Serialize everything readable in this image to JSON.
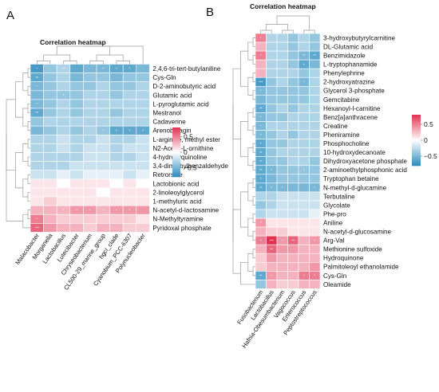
{
  "panels": [
    {
      "letter": "A",
      "chart_data": {
        "type": "heatmap",
        "title": "Correlation heatmap",
        "columns": [
          "Malacobacter",
          "Morganella",
          "Lactobacillus",
          "Lutecibacter",
          "Chryseobacterium",
          "CL500-29_marine_group",
          "hgcI_clade",
          "Cyanobium_PCC-6307",
          "Polynucleobacter"
        ],
        "rows": [
          "2,4,6-tri-tert-butylaniline",
          "Cys-Gln",
          "D-2-aminobutyric acid",
          "Glutamic acid",
          "L-pyroglutamic acid",
          "Mestranol",
          "Cadaverine",
          "Arenobufagin",
          "L-arginine, methyl ester",
          "N2-Acetyl-L-ornithine",
          "4-hydroxyquinoline",
          "3,4-dimethylbenzaldehyde",
          "Retrorsine",
          "Lactobionic acid",
          "2-linoleoylglycerol",
          "1-methyluric acid",
          "N-acetyl-d-lactosamine",
          "N-Methyltyramine",
          "Pyridoxal phosphate"
        ],
        "values": [
          [
            -0.7,
            -0.4,
            -0.3,
            -0.6,
            -0.5,
            -0.5,
            -0.6,
            -0.6,
            -0.5
          ],
          [
            -0.6,
            -0.4,
            -0.3,
            -0.5,
            -0.4,
            -0.4,
            -0.5,
            -0.4,
            -0.4
          ],
          [
            -0.5,
            -0.4,
            -0.3,
            -0.4,
            -0.4,
            -0.3,
            -0.4,
            -0.4,
            -0.3
          ],
          [
            -0.5,
            -0.4,
            -0.4,
            -0.4,
            -0.3,
            -0.3,
            -0.4,
            -0.3,
            -0.3
          ],
          [
            -0.5,
            -0.4,
            -0.3,
            -0.4,
            -0.3,
            -0.3,
            -0.3,
            -0.3,
            -0.3
          ],
          [
            -0.6,
            -0.4,
            -0.3,
            -0.4,
            -0.3,
            -0.3,
            -0.4,
            -0.3,
            -0.3
          ],
          [
            -0.4,
            -0.3,
            -0.3,
            -0.3,
            -0.3,
            -0.3,
            -0.3,
            -0.3,
            -0.3
          ],
          [
            -0.5,
            -0.4,
            -0.3,
            -0.4,
            -0.3,
            -0.4,
            -0.6,
            -0.6,
            -0.6
          ],
          [
            -0.3,
            -0.3,
            -0.2,
            -0.3,
            -0.3,
            -0.2,
            -0.3,
            -0.3,
            -0.2
          ],
          [
            -0.3,
            -0.3,
            -0.2,
            -0.3,
            -0.2,
            -0.2,
            -0.3,
            -0.2,
            -0.2
          ],
          [
            -0.3,
            -0.3,
            -0.3,
            -0.3,
            -0.2,
            -0.2,
            -0.3,
            -0.3,
            -0.2
          ],
          [
            -0.3,
            -0.3,
            -0.3,
            -0.2,
            -0.2,
            -0.2,
            -0.2,
            -0.2,
            -0.2
          ],
          [
            -0.2,
            -0.2,
            -0.1,
            -0.2,
            -0.1,
            -0.1,
            -0.1,
            -0.2,
            -0.1
          ],
          [
            0.1,
            0.1,
            0.0,
            0.1,
            0.1,
            0.1,
            0.0,
            0.1,
            0.0
          ],
          [
            0.1,
            0.1,
            0.1,
            0.1,
            0.1,
            0.0,
            0.1,
            0.1,
            0.1
          ],
          [
            0.1,
            0.2,
            0.1,
            0.1,
            0.1,
            0.1,
            0.1,
            0.1,
            0.1
          ],
          [
            0.3,
            0.3,
            0.3,
            0.4,
            0.4,
            0.3,
            0.4,
            0.4,
            0.4
          ],
          [
            0.5,
            0.3,
            0.2,
            0.2,
            0.2,
            0.2,
            0.2,
            0.2,
            0.1
          ],
          [
            0.6,
            0.4,
            0.3,
            0.3,
            0.2,
            0.3,
            0.3,
            0.2,
            0.2
          ]
        ],
        "significance": [
          [
            "*",
            "",
            "**",
            "",
            "",
            "*",
            "*",
            "*",
            ""
          ],
          [
            "**",
            "",
            "",
            "",
            "",
            "",
            "",
            "",
            ""
          ],
          [
            "*",
            "",
            "",
            "",
            "",
            "",
            "",
            "",
            ""
          ],
          [
            "",
            "",
            "*",
            "",
            "",
            "",
            "",
            "",
            ""
          ],
          [
            "*",
            "",
            "",
            "",
            "",
            "",
            "",
            "",
            ""
          ],
          [
            "**",
            "",
            "",
            "",
            "",
            "",
            "",
            "",
            ""
          ],
          [
            "",
            "",
            "",
            "",
            "",
            "",
            "",
            "",
            ""
          ],
          [
            "",
            "",
            "",
            "",
            "",
            "*",
            "*",
            "*",
            "*"
          ],
          [
            "",
            "",
            "",
            "",
            "",
            "",
            "",
            "",
            ""
          ],
          [
            "",
            "",
            "",
            "",
            "",
            "",
            "",
            "",
            ""
          ],
          [
            "",
            "",
            "",
            "",
            "",
            "",
            "",
            "",
            ""
          ],
          [
            "",
            "",
            "",
            "",
            "",
            "",
            "",
            "",
            ""
          ],
          [
            "",
            "",
            "",
            "",
            "",
            "",
            "",
            "",
            ""
          ],
          [
            "",
            "",
            "",
            "",
            "",
            "",
            "",
            "",
            ""
          ],
          [
            "",
            "",
            "",
            "",
            "",
            "",
            "",
            "",
            ""
          ],
          [
            "",
            "",
            "",
            "",
            "",
            "",
            "",
            "",
            ""
          ],
          [
            "",
            "",
            "*",
            "*",
            "*",
            "*",
            "*",
            "*",
            ""
          ],
          [
            "*",
            "",
            "",
            "",
            "",
            "",
            "",
            "",
            ""
          ],
          [
            "***",
            "",
            "",
            "",
            "",
            "",
            "",
            "",
            ""
          ]
        ],
        "legend": {
          "ticks": [
            0.5,
            0,
            -0.5
          ],
          "tick_labels": [
            "0.5",
            "0",
            "−0.5"
          ],
          "range": [
            -0.8,
            0.8
          ]
        },
        "colors": {
          "low": "#2b8cbe",
          "mid": "#ffffff",
          "high": "#e0314f"
        }
      }
    },
    {
      "letter": "B",
      "chart_data": {
        "type": "heatmap",
        "title": "Correlation heatmap",
        "columns": [
          "Fusobacterium",
          "Lactobacillus",
          "Hafnia-Obesumbacterium",
          "Vagococcus",
          "Enterococcus",
          "Peptostreptococcus"
        ],
        "rows": [
          "3-hydroxybutyrylcarnitine",
          "DL-Glutamic acid",
          "Benzimidazole",
          "L-tryptophanamide",
          "Phenylephrine",
          "2-hydroxyatrazine",
          "Glycerol 3-phosphate",
          "Gemcitabine",
          "Hexanoyl-l-carnitine",
          "Benz[a]anthracene",
          "Creatine",
          "Pheniramine",
          "Phosphocholine",
          "10-hydroxydecanoate",
          "Dihydroxyacetone phosphate",
          "2-aminoethylphosphonic acid",
          "Tryptophan betaine",
          "N-methyl-d-glucamine",
          "Terbutaline",
          "Glycolate",
          "Phe-pro",
          "Aniline",
          "N-acetyl-d-glucosamine",
          "Arg-Val",
          "Methionine sulfoxide",
          "Hydroquinone",
          "Palmitoleoyl ethanolamide",
          "Cys-Gln",
          "Oleamide"
        ],
        "values": [
          [
            0.5,
            -0.3,
            -0.3,
            -0.4,
            -0.3,
            -0.4
          ],
          [
            0.3,
            -0.3,
            -0.3,
            -0.4,
            -0.3,
            -0.4
          ],
          [
            0.5,
            -0.3,
            -0.3,
            -0.4,
            -0.5,
            -0.6
          ],
          [
            0.3,
            -0.3,
            -0.3,
            -0.4,
            -0.6,
            -0.5
          ],
          [
            0.3,
            -0.3,
            -0.3,
            -0.3,
            -0.4,
            -0.3
          ],
          [
            -0.7,
            -0.4,
            -0.3,
            -0.4,
            -0.5,
            -0.3
          ],
          [
            -0.5,
            -0.4,
            -0.4,
            -0.4,
            -0.4,
            -0.3
          ],
          [
            -0.5,
            -0.4,
            -0.4,
            -0.4,
            -0.4,
            -0.3
          ],
          [
            -0.6,
            -0.4,
            -0.3,
            -0.4,
            -0.3,
            -0.3
          ],
          [
            -0.5,
            -0.4,
            -0.4,
            -0.3,
            -0.3,
            -0.3
          ],
          [
            -0.5,
            -0.3,
            -0.3,
            -0.3,
            -0.3,
            -0.3
          ],
          [
            -0.5,
            -0.4,
            -0.3,
            -0.4,
            -0.3,
            -0.3
          ],
          [
            -0.6,
            -0.4,
            -0.4,
            -0.3,
            -0.3,
            -0.3
          ],
          [
            -0.6,
            -0.4,
            -0.3,
            -0.3,
            -0.3,
            -0.3
          ],
          [
            -0.6,
            -0.4,
            -0.4,
            -0.3,
            -0.3,
            -0.4
          ],
          [
            -0.6,
            -0.5,
            -0.4,
            -0.4,
            -0.4,
            -0.4
          ],
          [
            -0.6,
            -0.5,
            -0.4,
            -0.4,
            -0.4,
            -0.4
          ],
          [
            -0.6,
            -0.5,
            -0.5,
            -0.5,
            -0.5,
            -0.5
          ],
          [
            -0.3,
            -0.3,
            -0.2,
            -0.2,
            -0.2,
            -0.2
          ],
          [
            -0.4,
            -0.3,
            -0.2,
            -0.2,
            -0.2,
            -0.2
          ],
          [
            -0.3,
            -0.2,
            -0.2,
            -0.2,
            -0.2,
            -0.1
          ],
          [
            0.4,
            0.1,
            0.1,
            0.1,
            0.1,
            0.1
          ],
          [
            0.3,
            0.2,
            0.2,
            0.1,
            0.1,
            0.1
          ],
          [
            0.5,
            0.8,
            0.4,
            0.6,
            0.3,
            0.4
          ],
          [
            0.3,
            0.6,
            0.4,
            0.4,
            0.3,
            0.3
          ],
          [
            0.2,
            0.4,
            0.3,
            0.3,
            0.3,
            0.3
          ],
          [
            0.2,
            0.3,
            0.3,
            0.3,
            0.3,
            0.4
          ],
          [
            -0.6,
            0.4,
            0.3,
            0.3,
            0.5,
            0.5
          ],
          [
            -0.4,
            0.3,
            0.2,
            0.2,
            0.3,
            0.3
          ]
        ],
        "significance": [
          [
            "*",
            "",
            "",
            "",
            "",
            ""
          ],
          [
            "",
            "",
            "",
            "",
            "",
            ""
          ],
          [
            "*",
            "",
            "",
            "",
            "**",
            "**"
          ],
          [
            "",
            "",
            "",
            "",
            "*",
            ""
          ],
          [
            "",
            "",
            "",
            "",
            "",
            ""
          ],
          [
            "***",
            "",
            "",
            "",
            "*",
            ""
          ],
          [
            "*",
            "",
            "",
            "",
            "",
            ""
          ],
          [
            "",
            "",
            "",
            "",
            "",
            ""
          ],
          [
            "**",
            "",
            "",
            "",
            "",
            ""
          ],
          [
            "*",
            "",
            "",
            "",
            "",
            ""
          ],
          [
            "*",
            "",
            "",
            "",
            "",
            ""
          ],
          [
            "*",
            "",
            "",
            "",
            "",
            ""
          ],
          [
            "*",
            "",
            "",
            "",
            "",
            ""
          ],
          [
            "**",
            "",
            "",
            "",
            "",
            ""
          ],
          [
            "**",
            "",
            "",
            "",
            "",
            ""
          ],
          [
            "**",
            "*",
            "",
            "",
            "*",
            ""
          ],
          [
            "*",
            "",
            "",
            "",
            "",
            ""
          ],
          [
            "**",
            "*",
            "*",
            "",
            "",
            "*"
          ],
          [
            "",
            "",
            "",
            "",
            "",
            ""
          ],
          [
            "",
            "",
            "",
            "",
            "",
            ""
          ],
          [
            "",
            "",
            "",
            "",
            "",
            ""
          ],
          [
            "*",
            "",
            "",
            "",
            "",
            ""
          ],
          [
            "",
            "",
            "",
            "",
            "",
            ""
          ],
          [
            "*",
            "***",
            "*",
            "**",
            "",
            "*"
          ],
          [
            "",
            "**",
            "",
            "",
            "",
            ""
          ],
          [
            "",
            "",
            "",
            "",
            "",
            ""
          ],
          [
            "",
            "",
            "",
            "",
            "",
            ""
          ],
          [
            "**",
            "*",
            "",
            "",
            "*",
            "*"
          ],
          [
            "",
            "",
            "",
            "",
            "",
            ""
          ]
        ],
        "legend": {
          "ticks": [
            0.5,
            0,
            -0.5
          ],
          "tick_labels": [
            "0.5",
            "0",
            "−0.5"
          ],
          "range": [
            -0.8,
            0.8
          ]
        },
        "colors": {
          "low": "#2b8cbe",
          "mid": "#ffffff",
          "high": "#e0314f"
        }
      }
    }
  ]
}
